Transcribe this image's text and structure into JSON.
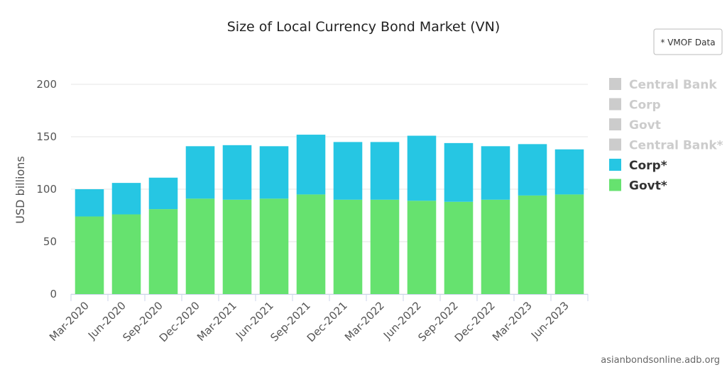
{
  "note_label": "* VMOF Data",
  "credit": "asianbondsonline.adb.org",
  "colors": {
    "corp_star": "#26c6e3",
    "govt_star": "#66e26f",
    "legend_hidden": "#cccccc",
    "legend_visible_text": "#333333"
  },
  "legend": [
    {
      "name": "Central Bank",
      "visible": false
    },
    {
      "name": "Corp",
      "visible": false
    },
    {
      "name": "Govt",
      "visible": false
    },
    {
      "name": "Central Bank*",
      "visible": false
    },
    {
      "name": "Corp*",
      "visible": true,
      "color_key": "corp_star"
    },
    {
      "name": "Govt*",
      "visible": true,
      "color_key": "govt_star"
    }
  ],
  "chart_data": {
    "type": "bar",
    "stacked": true,
    "title": "Size of Local Currency Bond Market (VN)",
    "xlabel": "",
    "ylabel": "USD billions",
    "ylim": [
      0,
      200
    ],
    "yticks": [
      0,
      50,
      100,
      150,
      200
    ],
    "grid": true,
    "legend_position": "right",
    "categories": [
      "Mar-2020",
      "Jun-2020",
      "Sep-2020",
      "Dec-2020",
      "Mar-2021",
      "Jun-2021",
      "Sep-2021",
      "Dec-2021",
      "Mar-2022",
      "Jun-2022",
      "Sep-2022",
      "Dec-2022",
      "Mar-2023",
      "Jun-2023"
    ],
    "series": [
      {
        "name": "Govt*",
        "values": [
          74,
          76,
          81,
          91,
          90,
          91,
          95,
          90,
          90,
          89,
          88,
          90,
          94,
          95
        ]
      },
      {
        "name": "Corp*",
        "values": [
          26,
          30,
          30,
          50,
          52,
          50,
          57,
          55,
          55,
          62,
          56,
          51,
          49,
          43
        ]
      }
    ]
  }
}
